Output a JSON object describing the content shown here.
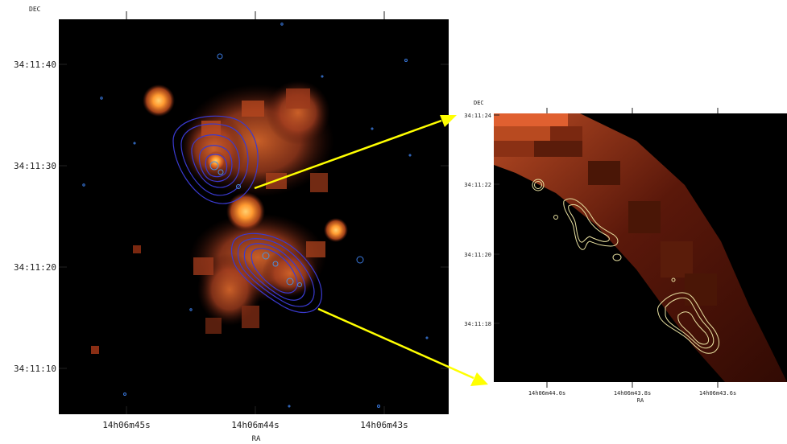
{
  "left_panel": {
    "dec_label": "DEC",
    "ra_label": "RA",
    "dec_ticks": [
      "34:11:40",
      "34:11:30",
      "34:11:20",
      "34:11:10"
    ],
    "ra_ticks": [
      "14h06m45s",
      "14h06m44s",
      "14h06m43s"
    ]
  },
  "right_panel": {
    "dec_label": "DEC",
    "ra_label": "RA",
    "dec_ticks": [
      "34:11:24",
      "34:11:22",
      "34:11:20",
      "34:11:18"
    ],
    "ra_ticks": [
      "14h06m44.0s",
      "14h06m43.8s",
      "14h06m43.6s"
    ]
  },
  "colors": {
    "background": "#ffffff",
    "image_background": "#000000",
    "emission": "#c8501e",
    "emission_bright": "#ff9a30",
    "left_contours": "#3a3acf",
    "right_contours": "#e8e0a0",
    "arrows": "#ffff00"
  }
}
